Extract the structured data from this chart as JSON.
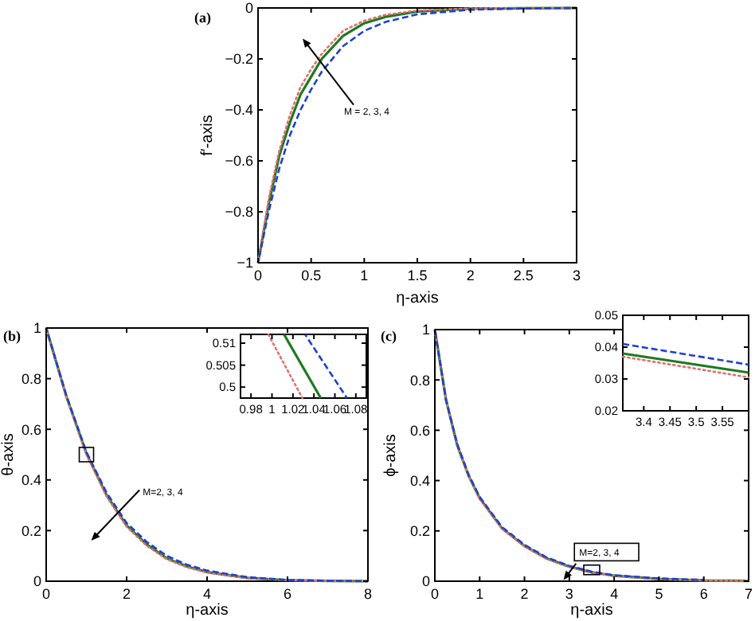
{
  "chart_data": [
    {
      "type": "line",
      "title": "(a)",
      "xlabel": "η-axis",
      "ylabel": "f′-axis",
      "xlim": [
        0,
        3
      ],
      "ylim": [
        -1,
        0
      ],
      "xticks": [
        0,
        0.5,
        1,
        1.5,
        2,
        2.5,
        3
      ],
      "yticks": [
        {
          "value": -1,
          "label": "−1"
        },
        {
          "value": -0.8,
          "label": "−0.8"
        },
        {
          "value": -0.6,
          "label": "−0.6"
        },
        {
          "value": -0.4,
          "label": "−0.4"
        },
        {
          "value": -0.2,
          "label": "−0.2"
        },
        0
      ],
      "annotations": [
        "M = 2, 3, 4"
      ],
      "x": [
        0,
        0.1,
        0.2,
        0.3,
        0.4,
        0.5,
        0.6,
        0.8,
        1,
        1.2,
        1.5,
        2,
        2.5,
        3
      ],
      "series": [
        {
          "color": "#1f3fd6",
          "line_style": "dashed",
          "values": [
            -1,
            -0.8,
            -0.63,
            -0.5,
            -0.4,
            -0.32,
            -0.25,
            -0.15,
            -0.09,
            -0.055,
            -0.025,
            -0.007,
            -0.002,
            0
          ]
        },
        {
          "color": "#1e7a1e",
          "line_style": "solid",
          "values": [
            -1,
            -0.77,
            -0.58,
            -0.45,
            -0.34,
            -0.27,
            -0.2,
            -0.11,
            -0.06,
            -0.035,
            -0.014,
            -0.003,
            -0.001,
            0
          ]
        },
        {
          "color": "#e07070",
          "line_style": "dotted",
          "values": [
            -1,
            -0.75,
            -0.56,
            -0.42,
            -0.31,
            -0.24,
            -0.18,
            -0.09,
            -0.05,
            -0.027,
            -0.01,
            -0.002,
            0,
            0
          ]
        }
      ]
    },
    {
      "type": "line",
      "title": "(b)",
      "xlabel": "η-axis",
      "ylabel": "θ-axis",
      "xlim": [
        0,
        8
      ],
      "ylim": [
        0,
        1
      ],
      "xticks": [
        0,
        2,
        4,
        6,
        8
      ],
      "yticks": [
        0,
        0.2,
        0.4,
        0.6,
        0.8,
        1
      ],
      "annotations": [
        "M=2, 3, 4"
      ],
      "x": [
        0,
        0.5,
        1,
        1.5,
        2,
        2.5,
        3,
        3.5,
        4,
        5,
        6,
        7,
        8
      ],
      "series": [
        {
          "color": "#1f3fd6",
          "line_style": "dashed",
          "values": [
            1,
            0.735,
            0.51,
            0.35,
            0.23,
            0.155,
            0.1,
            0.065,
            0.042,
            0.016,
            0.005,
            0.002,
            0
          ]
        },
        {
          "color": "#1e7a1e",
          "line_style": "solid",
          "values": [
            1,
            0.73,
            0.505,
            0.34,
            0.22,
            0.145,
            0.09,
            0.058,
            0.036,
            0.013,
            0.004,
            0.001,
            0
          ]
        },
        {
          "color": "#e07070",
          "line_style": "dotted",
          "values": [
            1,
            0.728,
            0.5,
            0.335,
            0.215,
            0.14,
            0.087,
            0.055,
            0.034,
            0.012,
            0.004,
            0.001,
            0
          ]
        }
      ]
    },
    {
      "type": "line",
      "xlim": [
        0.97,
        1.09
      ],
      "ylim": [
        0.4975,
        0.512
      ],
      "xticks": [
        0.98,
        1,
        1.02,
        1.04,
        1.06,
        1.08
      ],
      "yticks": [
        0.5,
        0.505,
        0.51
      ],
      "series": [
        {
          "color": "#1f3fd6",
          "line_style": "dashed",
          "x": [
            1.0315,
            1.0715
          ],
          "values": [
            0.512,
            0.4975
          ]
        },
        {
          "color": "#1e7a1e",
          "line_style": "solid",
          "x": [
            1.0115,
            1.0465
          ],
          "values": [
            0.512,
            0.4975
          ]
        },
        {
          "color": "#e07070",
          "line_style": "dotted",
          "x": [
            0.9965,
            1.029
          ],
          "values": [
            0.512,
            0.4975
          ]
        }
      ]
    },
    {
      "type": "line",
      "title": "(c)",
      "xlabel": "η-axis",
      "ylabel": "ϕ-axis",
      "xlim": [
        0,
        7
      ],
      "ylim": [
        0,
        1
      ],
      "xticks": [
        0,
        1,
        2,
        3,
        4,
        5,
        6,
        7
      ],
      "yticks": [
        0,
        0.2,
        0.4,
        0.6,
        0.8,
        1
      ],
      "annotations": [
        "M=2, 3, 4"
      ],
      "x": [
        0,
        0.25,
        0.5,
        0.75,
        1,
        1.5,
        2,
        2.5,
        3,
        3.5,
        4,
        5,
        6,
        7
      ],
      "series": [
        {
          "color": "#1f3fd6",
          "line_style": "dashed",
          "values": [
            1,
            0.72,
            0.545,
            0.425,
            0.335,
            0.215,
            0.145,
            0.094,
            0.061,
            0.038,
            0.024,
            0.011,
            0.005,
            null
          ]
        },
        {
          "color": "#1e7a1e",
          "line_style": "solid",
          "values": [
            1,
            0.72,
            0.54,
            0.42,
            0.33,
            0.21,
            0.14,
            0.09,
            0.058,
            0.035,
            0.022,
            0.009,
            0.003,
            0.001
          ]
        },
        {
          "color": "#e07070",
          "line_style": "dotted",
          "values": [
            1,
            0.72,
            0.54,
            0.418,
            0.328,
            0.208,
            0.138,
            0.088,
            0.056,
            0.034,
            0.021,
            0.008,
            0.003,
            0.001
          ]
        }
      ]
    },
    {
      "type": "line",
      "xlim": [
        3.36,
        3.6
      ],
      "ylim": [
        0.02,
        0.05
      ],
      "xticks": [
        3.4,
        3.45,
        3.5,
        3.55
      ],
      "yticks": [
        0.02,
        0.03,
        0.04,
        0.05
      ],
      "series": [
        {
          "color": "#1f3fd6",
          "line_style": "dashed",
          "x": [
            3.36,
            3.6
          ],
          "values": [
            0.041,
            0.0345
          ]
        },
        {
          "color": "#1e7a1e",
          "line_style": "solid",
          "x": [
            3.36,
            3.6
          ],
          "values": [
            0.038,
            0.032
          ]
        },
        {
          "color": "#e07070",
          "line_style": "dotted",
          "x": [
            3.36,
            3.6
          ],
          "values": [
            0.037,
            0.0305
          ]
        }
      ]
    }
  ]
}
